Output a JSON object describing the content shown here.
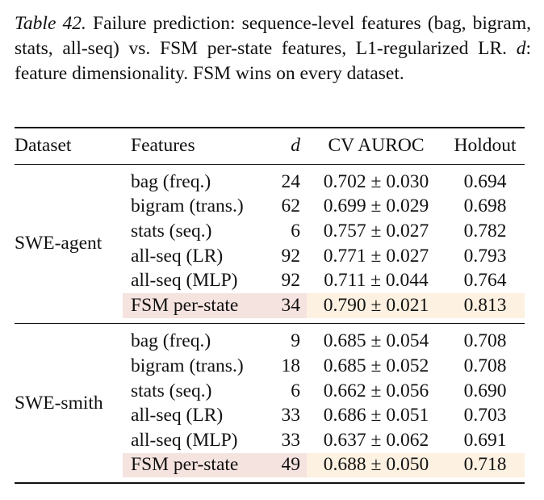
{
  "caption": {
    "label": "Table 42.",
    "text_before": "Failure prediction: sequence-level features (bag, bigram, stats, all-seq) vs. FSM per-state features, L1-regularized LR.",
    "symbol": "d",
    "text_after": ": feature dimensionality.  FSM wins on every dataset."
  },
  "table": {
    "header": [
      "Dataset",
      "Features",
      "d",
      "CV AUROC",
      "Holdout"
    ],
    "groups": [
      {
        "dataset": "SWE-agent",
        "rows": [
          [
            "bag (freq.)",
            "24",
            "0.702 ± 0.030",
            "0.694"
          ],
          [
            "bigram (trans.)",
            "62",
            "0.699 ± 0.029",
            "0.698"
          ],
          [
            "stats (seq.)",
            "6",
            "0.757 ± 0.027",
            "0.782"
          ],
          [
            "all-seq (LR)",
            "92",
            "0.771 ± 0.027",
            "0.793"
          ],
          [
            "all-seq (MLP)",
            "92",
            "0.711 ± 0.044",
            "0.764"
          ],
          [
            "FSM per-state",
            "34",
            "0.790 ± 0.021",
            "0.813"
          ]
        ]
      },
      {
        "dataset": "SWE-smith",
        "rows": [
          [
            "bag (freq.)",
            "9",
            "0.685 ± 0.054",
            "0.708"
          ],
          [
            "bigram (trans.)",
            "18",
            "0.685 ± 0.052",
            "0.708"
          ],
          [
            "stats (seq.)",
            "6",
            "0.662 ± 0.056",
            "0.690"
          ],
          [
            "all-seq (LR)",
            "33",
            "0.686 ± 0.051",
            "0.703"
          ],
          [
            "all-seq (MLP)",
            "33",
            "0.637 ± 0.062",
            "0.691"
          ],
          [
            "FSM per-state",
            "49",
            "0.688 ± 0.050",
            "0.718"
          ]
        ]
      }
    ]
  }
}
